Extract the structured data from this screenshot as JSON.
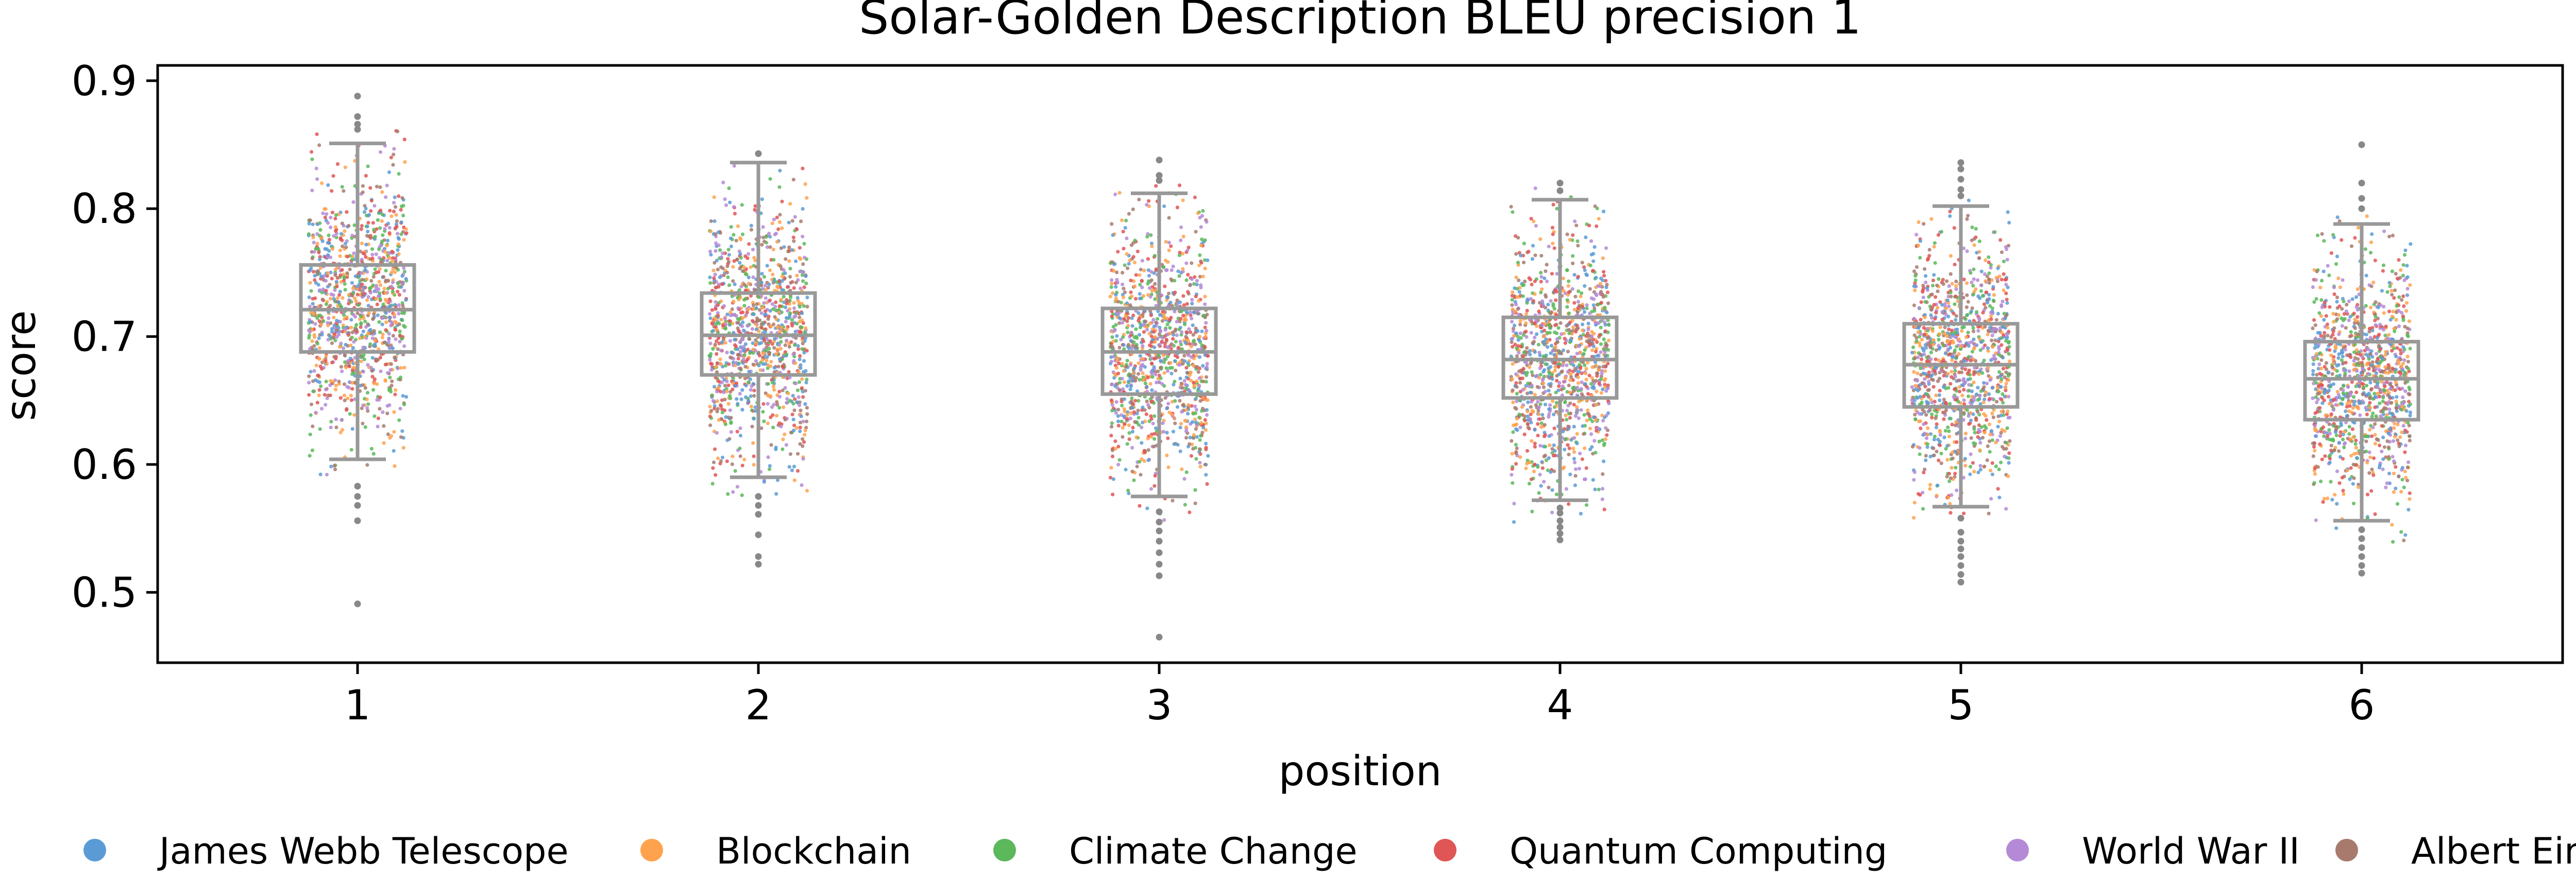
{
  "chart_data": {
    "type": "box",
    "title": "Solar-Golden Description BLEU precision 1",
    "xlabel": "position",
    "ylabel": "score",
    "categories": [
      "1",
      "2",
      "3",
      "4",
      "5",
      "6"
    ],
    "yticks": [
      "0.5",
      "0.6",
      "0.7",
      "0.8",
      "0.9"
    ],
    "ylim": [
      0.445,
      0.912
    ],
    "grid": false,
    "legend_position": "bottom",
    "boxes": [
      {
        "position": 1,
        "q1": 0.688,
        "median": 0.721,
        "q3": 0.756,
        "whisker_low": 0.604,
        "whisker_high": 0.851,
        "outliers": [
          0.888,
          0.872,
          0.866,
          0.862,
          0.583,
          0.575,
          0.568,
          0.556,
          0.491
        ]
      },
      {
        "position": 2,
        "q1": 0.67,
        "median": 0.701,
        "q3": 0.734,
        "whisker_low": 0.59,
        "whisker_high": 0.836,
        "outliers": [
          0.843,
          0.575,
          0.568,
          0.561,
          0.545,
          0.528,
          0.522
        ]
      },
      {
        "position": 3,
        "q1": 0.655,
        "median": 0.688,
        "q3": 0.722,
        "whisker_low": 0.575,
        "whisker_high": 0.812,
        "outliers": [
          0.838,
          0.826,
          0.822,
          0.563,
          0.555,
          0.548,
          0.54,
          0.531,
          0.522,
          0.513,
          0.465
        ]
      },
      {
        "position": 4,
        "q1": 0.652,
        "median": 0.682,
        "q3": 0.715,
        "whisker_low": 0.572,
        "whisker_high": 0.807,
        "outliers": [
          0.82,
          0.814,
          0.566,
          0.562,
          0.556,
          0.551,
          0.546,
          0.541
        ]
      },
      {
        "position": 5,
        "q1": 0.645,
        "median": 0.678,
        "q3": 0.71,
        "whisker_low": 0.567,
        "whisker_high": 0.802,
        "outliers": [
          0.836,
          0.831,
          0.823,
          0.815,
          0.81,
          0.558,
          0.547,
          0.54,
          0.534,
          0.528,
          0.521,
          0.514,
          0.508
        ]
      },
      {
        "position": 6,
        "q1": 0.635,
        "median": 0.667,
        "q3": 0.696,
        "whisker_low": 0.556,
        "whisker_high": 0.788,
        "outliers": [
          0.85,
          0.82,
          0.808,
          0.8,
          0.549,
          0.542,
          0.535,
          0.528,
          0.521,
          0.515
        ]
      }
    ],
    "series": [
      {
        "name": "James Webb Telescope",
        "color": "#5b9bd5"
      },
      {
        "name": "Blockchain",
        "color": "#ffa24d"
      },
      {
        "name": "Climate Change",
        "color": "#5bb85b"
      },
      {
        "name": "Quantum Computing",
        "color": "#e05555"
      },
      {
        "name": "World War II",
        "color": "#b48ad6"
      },
      {
        "name": "Albert Einstein",
        "color": "#a87a6e"
      }
    ],
    "box_color": "#999999",
    "outlier_color": "#888888"
  }
}
